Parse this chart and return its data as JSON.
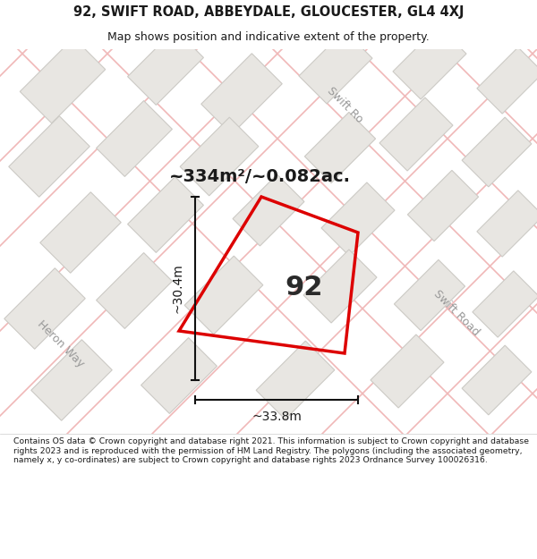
{
  "title_line1": "92, SWIFT ROAD, ABBEYDALE, GLOUCESTER, GL4 4XJ",
  "title_line2": "Map shows position and indicative extent of the property.",
  "area_text": "~334m²/~0.082ac.",
  "property_number": "92",
  "dim_width": "~33.8m",
  "dim_height": "~30.4m",
  "footer_text": "Contains OS data © Crown copyright and database right 2021. This information is subject to Crown copyright and database rights 2023 and is reproduced with the permission of HM Land Registry. The polygons (including the associated geometry, namely x, y co-ordinates) are subject to Crown copyright and database rights 2023 Ordnance Survey 100026316.",
  "map_bg_color": "#f7f6f4",
  "building_fill": "#e8e6e2",
  "building_edge": "#cccac5",
  "road_line_color": "#f0b8b8",
  "property_outline_color": "#dd0000",
  "dim_line_color": "#111111",
  "white": "#ffffff",
  "text_color": "#1a1a1a",
  "road_label_color": "#999999"
}
